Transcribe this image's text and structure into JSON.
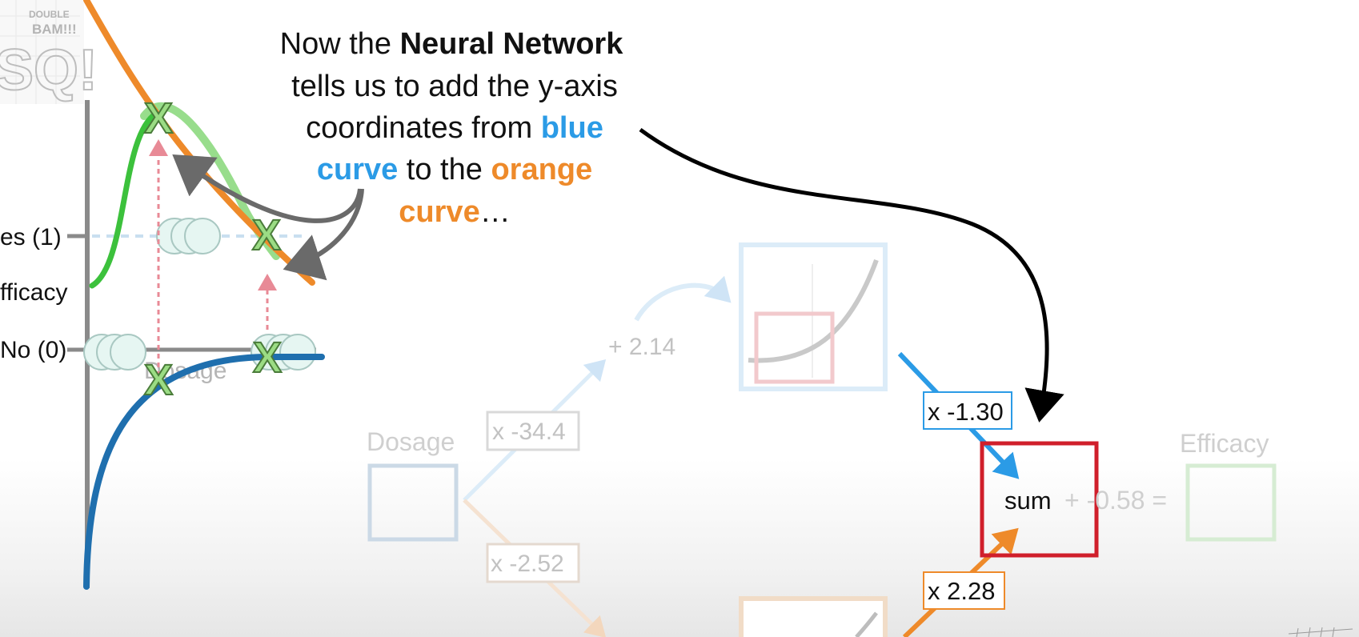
{
  "logo": {
    "text_top": "DOUBLE",
    "text_mid": "BAM!!!",
    "text_big": "SQ!"
  },
  "caption": {
    "line1_a": "Now the ",
    "line1_b": "Neural Network",
    "line2": "tells us to add the y-axis",
    "line3_a": "coordinates from ",
    "line3_b": "blue",
    "line4_a": "curve",
    "line4_b": " to the ",
    "line4_c": "orange",
    "line5_a": "curve",
    "line5_b": "…"
  },
  "left_plot": {
    "yes_label": "es (1)",
    "efficacy_label": "fficacy",
    "no_label": "No (0)",
    "dosage_label": "Dosage",
    "marker_symbol": "X"
  },
  "network": {
    "input_label": "Dosage",
    "output_label": "Efficacy",
    "weight_top": "x -34.4",
    "weight_bottom": "x -2.52",
    "bias_top": "+ 2.14",
    "weight_blue": "x -1.30",
    "weight_orange": "x 2.28",
    "sum_label": "sum",
    "final_bias": "+ -0.58 ="
  },
  "colors": {
    "blue": "#2b9be6",
    "orange": "#ee8a2a",
    "green": "#3cc13c",
    "dark_blue": "#1f6fae",
    "red_box": "#d01f2b",
    "pink_arrow": "#e88a96"
  }
}
